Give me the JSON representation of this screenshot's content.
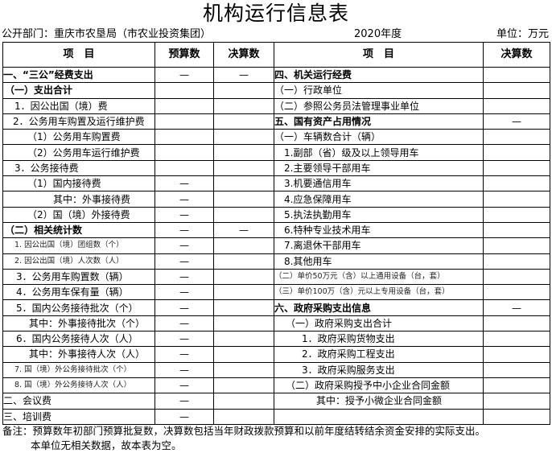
{
  "title": "机构运行信息表",
  "department": "公开部门：重庆市农垦局（市农业投资集团）",
  "year": "2020年度",
  "unit": "单位：万元",
  "headers": {
    "left_item": "项　目",
    "left_budget": "预算数",
    "left_final": "决算数",
    "right_item": "项　目",
    "right_final": "决算数"
  },
  "rows": [
    {
      "l": {
        "label": "一、“三公”经费支出",
        "budget": "—",
        "final": "—",
        "bold": true,
        "indent": 0
      },
      "r": {
        "label": "四、机关运行经费",
        "final": "",
        "bold": true,
        "indent": 0
      }
    },
    {
      "l": {
        "label": "（一）支出合计",
        "budget": "",
        "final": "",
        "bold": true,
        "indent": 2
      },
      "r": {
        "label": "（一）行政单位",
        "final": "",
        "indent": 0
      }
    },
    {
      "l": {
        "label": "1．因公出国（境）费",
        "budget": "",
        "final": "",
        "indent": 14
      },
      "r": {
        "label": "（二）参照公务员法管理事业单位",
        "final": "",
        "indent": 0
      }
    },
    {
      "l": {
        "label": "2．公务用车购置及运行维护费",
        "budget": "",
        "final": "",
        "indent": 12
      },
      "r": {
        "label": "五、国有资产占用情况",
        "final": "—",
        "bold": true,
        "indent": 0
      }
    },
    {
      "l": {
        "label": "（1）公务用车购置费",
        "budget": "",
        "final": "",
        "indent": 30
      },
      "r": {
        "label": "（一）车辆数合计（辆）",
        "final": "",
        "indent": 0
      }
    },
    {
      "l": {
        "label": "（2）公务用车运行维护费",
        "budget": "",
        "final": "",
        "indent": 30
      },
      "r": {
        "label": "1.副部（省）级及以上领导用车",
        "final": "",
        "indent": 12
      }
    },
    {
      "l": {
        "label": "3．公务接待费",
        "budget": "",
        "final": "",
        "indent": 14
      },
      "r": {
        "label": "2.主要领导干部用车",
        "final": "",
        "indent": 12
      }
    },
    {
      "l": {
        "label": "（1）国内接待费",
        "budget": "—",
        "final": "",
        "indent": 30
      },
      "r": {
        "label": "3.机要通信用车",
        "final": "",
        "indent": 12
      }
    },
    {
      "l": {
        "label": "其中：外事接待费",
        "budget": "—",
        "final": "",
        "indent": 62
      },
      "r": {
        "label": "4.应急保障用车",
        "final": "",
        "indent": 12
      }
    },
    {
      "l": {
        "label": "（2）国（境）外接待费",
        "budget": "—",
        "final": "",
        "indent": 30
      },
      "r": {
        "label": "5.执法执勤用车",
        "final": "",
        "indent": 12
      }
    },
    {
      "l": {
        "label": "（二）相关统计数",
        "budget": "—",
        "final": "—",
        "bold": true,
        "indent": 2
      },
      "r": {
        "label": "6.特种专业技术用车",
        "final": "",
        "indent": 12
      }
    },
    {
      "l": {
        "label": "1. 因公出国（境）团组数（个）",
        "budget": "—",
        "final": "",
        "small": true,
        "indent": 14
      },
      "r": {
        "label": "7.离退休干部用车",
        "final": "",
        "indent": 12
      }
    },
    {
      "l": {
        "label": "2. 因公出国（境）人次数（人）",
        "budget": "—",
        "final": "",
        "small": true,
        "indent": 14
      },
      "r": {
        "label": "8.其他用车",
        "final": "",
        "indent": 12
      }
    },
    {
      "l": {
        "label": "3．公务用车购置数（辆）",
        "budget": "—",
        "final": "",
        "indent": 16
      },
      "r": {
        "label": "（二）单价50万元（含）以上通用设备（台，套）",
        "final": "",
        "small": true,
        "indent": 0
      }
    },
    {
      "l": {
        "label": "4．公务用车保有量（辆）",
        "budget": "—",
        "final": "",
        "indent": 16
      },
      "r": {
        "label": "（三）单价100万（含）元以上专用设备（台，套）",
        "final": "",
        "small": true,
        "indent": 0
      }
    },
    {
      "l": {
        "label": "5．国内公务接待批次（个）",
        "budget": "—",
        "final": "",
        "indent": 16
      },
      "r": {
        "label": "六、政府采购支出信息",
        "final": "—",
        "bold": true,
        "indent": 0
      }
    },
    {
      "l": {
        "label": "其中：外事接待批次（个）",
        "budget": "—",
        "final": "",
        "indent": 32
      },
      "r": {
        "label": "（一）政府采购支出合计",
        "final": "",
        "indent": 14
      }
    },
    {
      "l": {
        "label": "6．国内公务接待人次（人）",
        "budget": "—",
        "final": "",
        "indent": 16
      },
      "r": {
        "label": "1．政府采购货物支出",
        "final": "",
        "indent": 34
      }
    },
    {
      "l": {
        "label": "其中：外事接待人次（人）",
        "budget": "—",
        "final": "",
        "indent": 32
      },
      "r": {
        "label": "2．政府采购工程支出",
        "final": "",
        "indent": 34
      }
    },
    {
      "l": {
        "label": "7. 国（境）外公务接待批次（个）",
        "budget": "—",
        "final": "",
        "small": true,
        "indent": 14
      },
      "r": {
        "label": "3．政府采购服务支出",
        "final": "",
        "indent": 34
      }
    },
    {
      "l": {
        "label": "8. 国（境）外公务接待人次（人）",
        "budget": "—",
        "final": "",
        "small": true,
        "indent": 14
      },
      "r": {
        "label": "（二）政府采购授予中小企业合同金额",
        "final": "",
        "indent": 14
      }
    },
    {
      "l": {
        "label": "二、会议费",
        "budget": "—",
        "final": "",
        "indent": 0
      },
      "r": {
        "label": "其中：授予小微企业合同金额",
        "final": "",
        "indent": 52
      }
    },
    {
      "l": {
        "label": "三、培训费",
        "budget": "—",
        "final": "",
        "indent": 0
      },
      "r": {
        "label": "",
        "final": "",
        "indent": 0
      }
    }
  ],
  "notes": [
    "备注：预算数年初部门预算批复数，决算数包括当年财政拨款预算和以前年度结转结余资金安排的实际支出。",
    "本单位无相关数据，故本表为空。"
  ]
}
